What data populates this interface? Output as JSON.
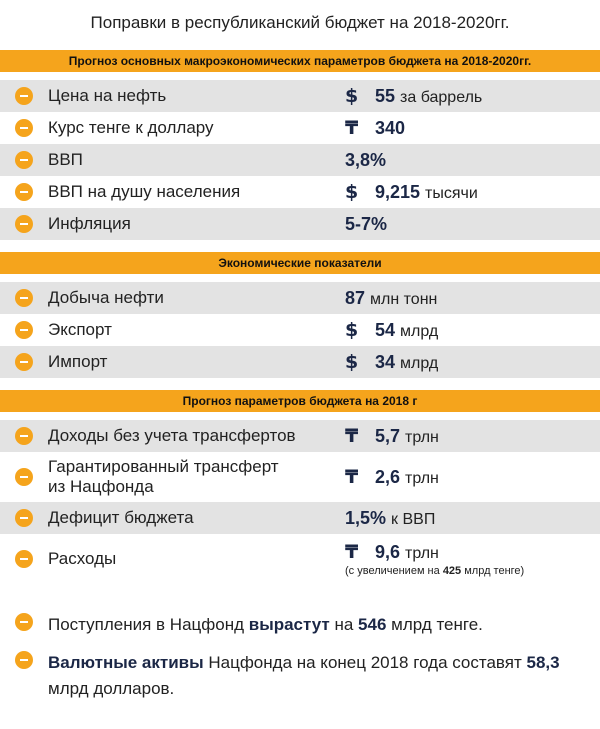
{
  "title": "Поправки в республиканский бюджет на 2018-2020гг.",
  "sections": [
    {
      "header": "Прогноз основных макроэкономических параметров бюджета на 2018-2020гг.",
      "rows": [
        {
          "label": "Цена на нефть",
          "currency": "$",
          "value": "55",
          "unit": "за баррель"
        },
        {
          "label": "Курс тенге к доллару",
          "currency": "₸",
          "value": "340"
        },
        {
          "label": "ВВП",
          "value": "3,8%"
        },
        {
          "label": "ВВП на душу населения",
          "currency": "$",
          "value": "9,215",
          "unit": "тысячи"
        },
        {
          "label": "Инфляция",
          "value": "5-7%"
        }
      ]
    },
    {
      "header": "Экономические показатели",
      "rows": [
        {
          "label": "Добыча нефти",
          "value": "87",
          "unit": "млн тонн"
        },
        {
          "label": "Экспорт",
          "currency": "$",
          "value": "54",
          "unit": "млрд"
        },
        {
          "label": "Импорт",
          "currency": "$",
          "value": "34",
          "unit": "млрд"
        }
      ]
    },
    {
      "header": "Прогноз параметров бюджета на 2018 г",
      "rows": [
        {
          "label": "Доходы без учета трансфертов",
          "currency": "₸",
          "value": "5,7",
          "unit": "трлн"
        },
        {
          "label": "Гарантированный трансферт\nиз Нацфонда",
          "currency": "₸",
          "value": "2,6",
          "unit": "трлн"
        },
        {
          "label": "Дефицит бюджета",
          "value": "1,5%",
          "unit": "к ВВП"
        },
        {
          "label": "Расходы",
          "currency": "₸",
          "value": "9,6",
          "unit": "трлн",
          "note": [
            {
              "text": "(с увеличением на "
            },
            {
              "text": "425",
              "bold": true
            },
            {
              "text": " млрд тенге)"
            }
          ]
        }
      ]
    }
  ],
  "footer": [
    [
      {
        "text": "Поступления в Нацфонд "
      },
      {
        "text": "вырастут",
        "bold": true
      },
      {
        "text": " на "
      },
      {
        "text": "546",
        "bold": true
      },
      {
        "text": " млрд тенге."
      }
    ],
    [
      {
        "text": "Валютные активы",
        "bold": true
      },
      {
        "text": " Нацфонда на конец 2018 года составят "
      },
      {
        "text": "58,3",
        "bold": true
      },
      {
        "text": " млрд долларов."
      }
    ]
  ]
}
